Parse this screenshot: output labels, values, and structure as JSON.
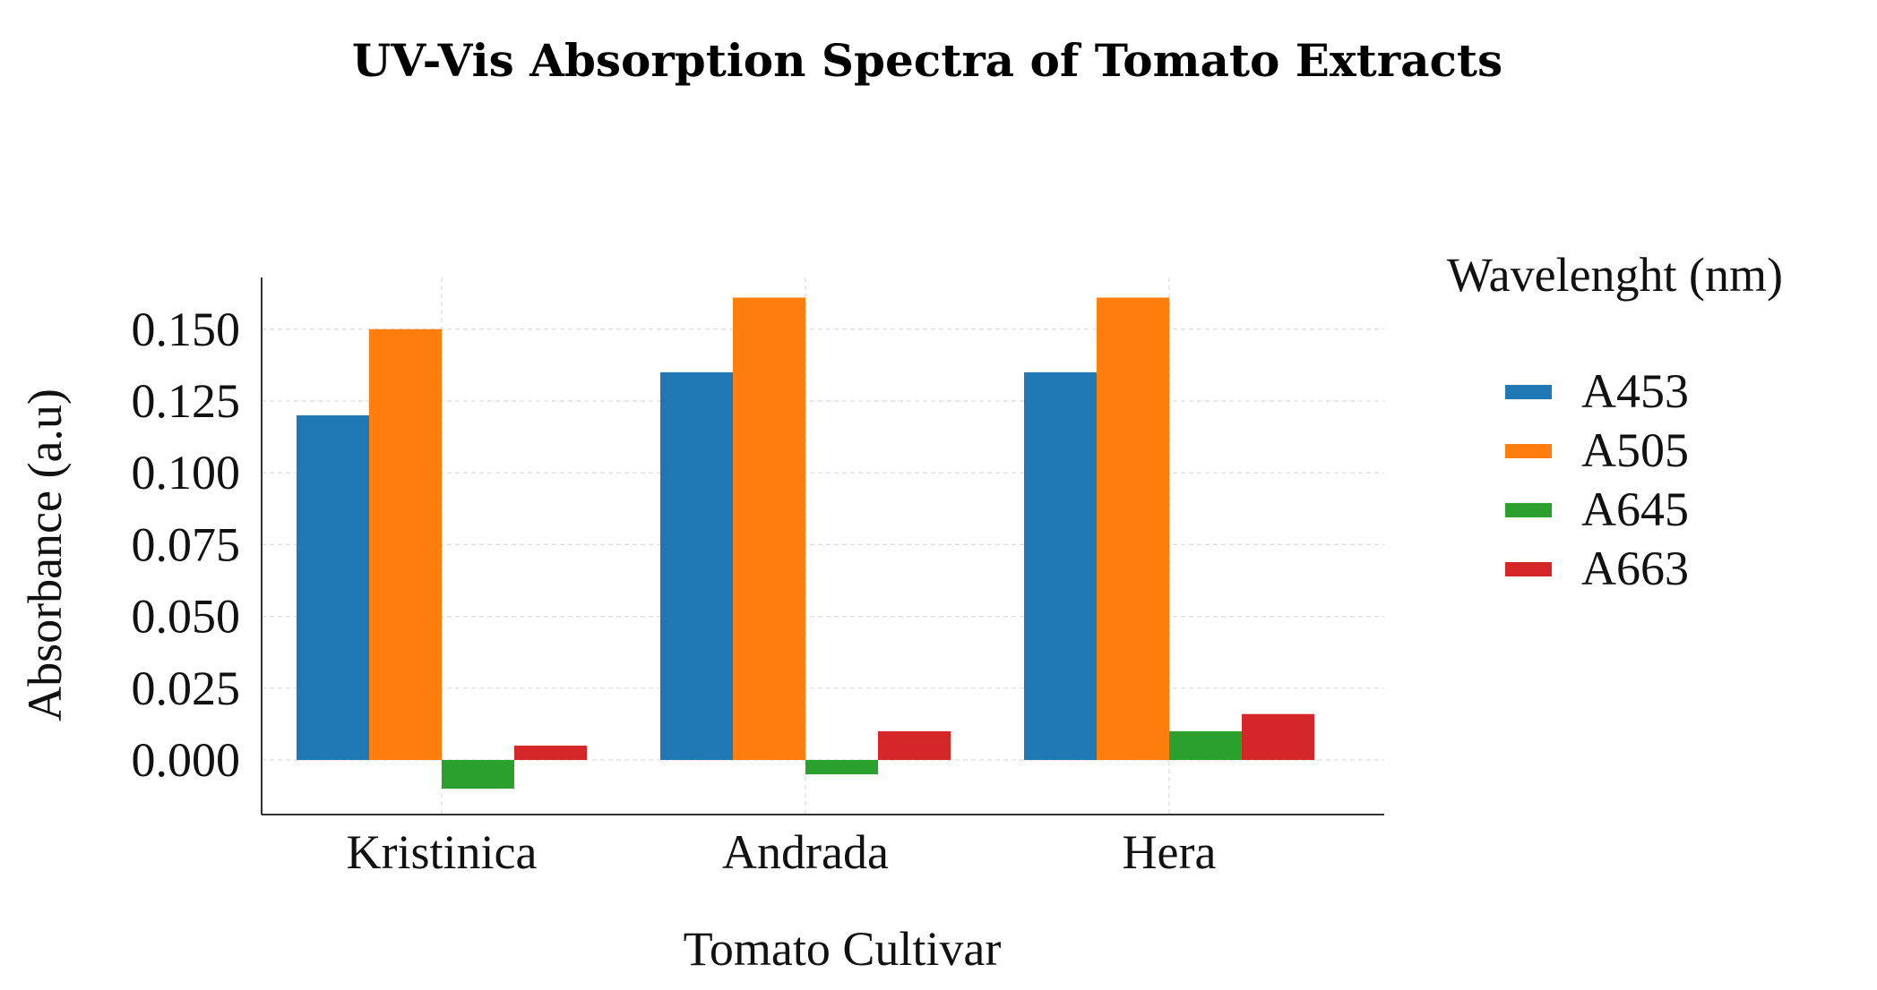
{
  "chart_data": {
    "type": "bar",
    "title": "UV-Vis Absorption Spectra  of Tomato Extracts",
    "xlabel": "Tomato Cultivar",
    "ylabel": "Absorbance (a.u)",
    "categories": [
      "Kristinica",
      "Andrada",
      "Hera"
    ],
    "ylim": [
      -0.019,
      0.168
    ],
    "yticks": [
      0.0,
      0.025,
      0.05,
      0.075,
      0.1,
      0.125,
      0.15
    ],
    "ytick_labels": [
      "0.000",
      "0.025",
      "0.050",
      "0.075",
      "0.100",
      "0.125",
      "0.150"
    ],
    "grid": true,
    "legend_title": "Wavelenght (nm)",
    "legend_position": "right",
    "series": [
      {
        "name": "A453",
        "color": "#1f77b4",
        "values": [
          0.12,
          0.135,
          0.135
        ]
      },
      {
        "name": "A505",
        "color": "#ff7f0e",
        "values": [
          0.15,
          0.161,
          0.161
        ]
      },
      {
        "name": "A645",
        "color": "#2ca02c",
        "values": [
          -0.01,
          -0.005,
          0.01
        ]
      },
      {
        "name": "A663",
        "color": "#d62728",
        "values": [
          0.005,
          0.01,
          0.016
        ]
      }
    ]
  }
}
